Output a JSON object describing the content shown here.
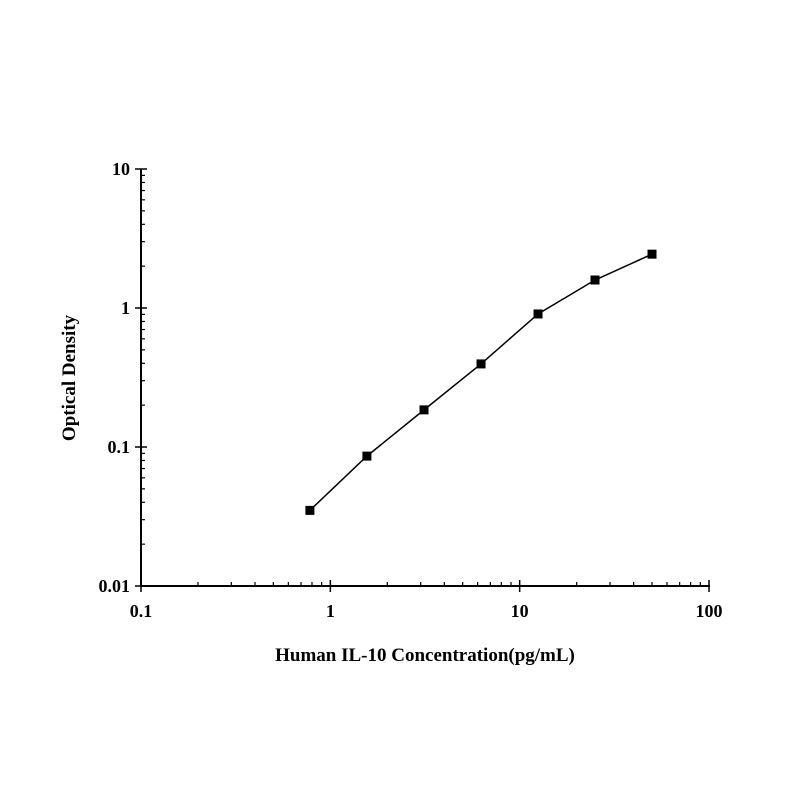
{
  "chart_data": {
    "type": "line",
    "title": "",
    "xlabel": "Human IL-10 Concentration(pg/mL)",
    "ylabel": "Optical Density",
    "xscale": "log",
    "yscale": "log",
    "xlim": [
      0.1,
      100
    ],
    "ylim": [
      0.01,
      10
    ],
    "xticks": [
      "0.1",
      "1",
      "10",
      "100"
    ],
    "yticks": [
      "0.01",
      "0.1",
      "1",
      "10"
    ],
    "grid": false,
    "legend": "none",
    "marker": "square",
    "color": "#000000",
    "series": [
      {
        "x": [
          0.78,
          1.56,
          3.125,
          6.25,
          12.5,
          25,
          50
        ],
        "y": [
          0.035,
          0.086,
          0.185,
          0.396,
          0.906,
          1.59,
          2.44
        ]
      }
    ]
  }
}
